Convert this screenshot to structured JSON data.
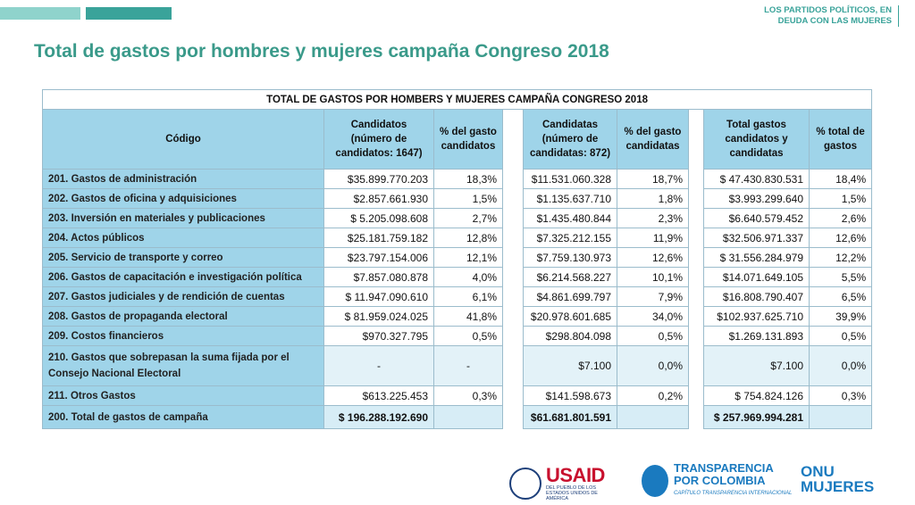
{
  "header": {
    "tagline": [
      "LOS PARTIDOS POLÍTICOS, EN",
      "DEUDA CON LAS MUJERES"
    ],
    "title": "Total de gastos por hombres y mujeres campaña Congreso 2018"
  },
  "table": {
    "title": "TOTAL DE GASTOS POR HOMBERS Y MUJERES CAMPAÑA CONGRESO 2018",
    "headers": [
      "Código",
      "Candidatos (número de candidatos: 1647)",
      "% del gasto candidatos",
      "Candidatas (número de candidatas: 872)",
      "% del gasto candidatas",
      "Total gastos candidatos y candidatas",
      "% total de gastos"
    ],
    "rows": [
      [
        "201. Gastos de administración",
        "$35.899.770.203",
        "18,3%",
        "$11.531.060.328",
        "18,7%",
        "$ 47.430.830.531",
        "18,4%"
      ],
      [
        "202. Gastos de oficina y adquisiciones",
        "$2.857.661.930",
        "1,5%",
        "$1.135.637.710",
        "1,8%",
        "$3.993.299.640",
        "1,5%"
      ],
      [
        "203. Inversión en materiales y publicaciones",
        "$ 5.205.098.608",
        "2,7%",
        "$1.435.480.844",
        "2,3%",
        "$6.640.579.452",
        "2,6%"
      ],
      [
        "204. Actos públicos",
        "$25.181.759.182",
        "12,8%",
        "$7.325.212.155",
        "11,9%",
        "$32.506.971.337",
        "12,6%"
      ],
      [
        "205. Servicio de transporte y correo",
        "$23.797.154.006",
        "12,1%",
        "$7.759.130.973",
        "12,6%",
        "$ 31.556.284.979",
        "12,2%"
      ],
      [
        "206. Gastos de capacitación e investigación política",
        "$7.857.080.878",
        "4,0%",
        "$6.214.568.227",
        "10,1%",
        "$14.071.649.105",
        "5,5%"
      ],
      [
        "207. Gastos judiciales y de rendición de cuentas",
        "$ 11.947.090.610",
        "6,1%",
        "$4.861.699.797",
        "7,9%",
        "$16.808.790.407",
        "6,5%"
      ],
      [
        "208. Gastos de propaganda electoral",
        "$ 81.959.024.025",
        "41,8%",
        "$20.978.601.685",
        "34,0%",
        "$102.937.625.710",
        "39,9%"
      ],
      [
        "209. Costos financieros",
        "$970.327.795",
        "0,5%",
        "$298.804.098",
        "0,5%",
        "$1.269.131.893",
        "0,5%"
      ],
      [
        "210. Gastos que sobrepasan la suma fijada por el Consejo Nacional Electoral",
        "-",
        "-",
        "$7.100",
        "0,0%",
        "$7.100",
        "0,0%"
      ],
      [
        "211. Otros Gastos",
        "$613.225.453",
        "0,3%",
        "$141.598.673",
        "0,2%",
        "$ 754.824.126",
        "0,3%"
      ],
      [
        "200. Total de gastos de campaña",
        "$ 196.288.192.690",
        null,
        "$61.681.801.591",
        null,
        "$ 257.969.994.281",
        null
      ]
    ]
  },
  "logos": {
    "usaid": {
      "name": "USAID",
      "subtitle": "DEL PUEBLO DE LOS ESTADOS UNIDOS DE AMÉRICA"
    },
    "transparencia": {
      "name": [
        "TRANSPARENCIA",
        "POR COLOMBIA"
      ],
      "subtitle": "CAPÍTULO TRANSPARENCIA INTERNACIONAL"
    },
    "onu": {
      "name": [
        "ONU",
        "MUJERES"
      ]
    }
  }
}
